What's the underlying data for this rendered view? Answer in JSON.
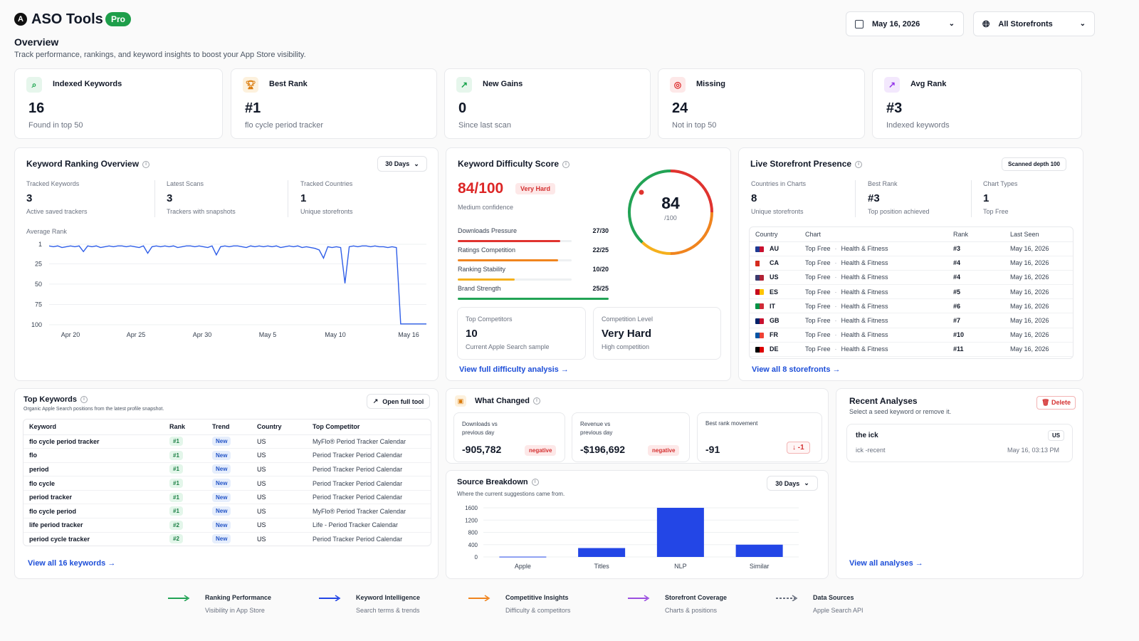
{
  "app": {
    "name": "ASO Tools",
    "badge": "Pro"
  },
  "page": {
    "title": "Overview",
    "subtitle": "Track performance, rankings, and keyword insights to boost your App Store visibility."
  },
  "controls": {
    "date": "May 16, 2026",
    "storefront": "All Storefronts"
  },
  "stats": [
    {
      "label": "Indexed Keywords",
      "value": "16",
      "sub": "Found in top 50",
      "icon": "search-icon",
      "color": "#16a34a"
    },
    {
      "label": "Best Rank",
      "value": "#1",
      "sub": "flo cycle period tracker",
      "icon": "trophy-icon",
      "color": "#d97706"
    },
    {
      "label": "New Gains",
      "value": "0",
      "sub": "Since last scan",
      "icon": "trend-up-icon",
      "color": "#16a34a"
    },
    {
      "label": "Missing",
      "value": "24",
      "sub": "Not in top 50",
      "icon": "target-icon",
      "color": "#dc2626"
    },
    {
      "label": "Avg Rank",
      "value": "#3",
      "sub": "Indexed keywords",
      "icon": "trend-up-icon",
      "color": "#9333ea"
    }
  ],
  "ranking": {
    "title": "Keyword Ranking Overview",
    "range": "30 Days",
    "metrics": [
      {
        "label": "Tracked Keywords",
        "value": "3",
        "sub": "Active saved trackers"
      },
      {
        "label": "Latest Scans",
        "value": "3",
        "sub": "Trackers with snapshots"
      },
      {
        "label": "Tracked Countries",
        "value": "1",
        "sub": "Unique storefronts"
      }
    ],
    "chart_data": {
      "type": "line",
      "ylabel": "Average Rank",
      "yticks": [
        "1",
        "25",
        "50",
        "75",
        "100"
      ],
      "ylim": [
        1,
        100
      ],
      "y_inverted": true,
      "xticks": [
        "Apr 20",
        "Apr 25",
        "Apr 30",
        "May 5",
        "May 10",
        "May 16"
      ],
      "series": [
        {
          "values": [
            3,
            4,
            3,
            5,
            4,
            3,
            4,
            3,
            10,
            3,
            4,
            3,
            5,
            4,
            3,
            4,
            3,
            3,
            4,
            3,
            4,
            5,
            3,
            12,
            4,
            3,
            4,
            3,
            4,
            3,
            5,
            4,
            3,
            3,
            4,
            3,
            4,
            5,
            3,
            14,
            4,
            3,
            4,
            3,
            3,
            4,
            5,
            3,
            4,
            3,
            4,
            3,
            4,
            3,
            5,
            4,
            3,
            4,
            3,
            5,
            4,
            5,
            6,
            8,
            18,
            4,
            5,
            4,
            5,
            49,
            4,
            3,
            4,
            3,
            3,
            4,
            3,
            4,
            4,
            5,
            4,
            5,
            99,
            99,
            99,
            99,
            99,
            99,
            99
          ]
        }
      ],
      "color": "#2f5ee8"
    }
  },
  "difficulty": {
    "title": "Keyword Difficulty Score",
    "score": "84/100",
    "tag": "Very Hard",
    "confidence": "Medium confidence",
    "gauge_value": "84",
    "gauge_max": "/100",
    "gauge_fraction": 0.84,
    "factors": [
      {
        "label": "Downloads Pressure",
        "value": "27/30",
        "fraction": 0.9,
        "color": "#e0332f"
      },
      {
        "label": "Ratings Competition",
        "value": "22/25",
        "fraction": 0.88,
        "color": "#f0841e"
      },
      {
        "label": "Ranking Stability",
        "value": "10/20",
        "fraction": 0.5,
        "color": "#f5b01c"
      },
      {
        "label": "Brand Strength",
        "value": "25/25",
        "fraction": 1.0,
        "color": "#22a355"
      }
    ],
    "competitors": {
      "label": "Top Competitors",
      "value": "10",
      "sub": "Current Apple Search sample"
    },
    "level": {
      "label": "Competition Level",
      "value": "Very Hard",
      "sub": "High competition"
    },
    "link": "View full difficulty analysis"
  },
  "storefront": {
    "title": "Live Storefront Presence",
    "depth": "Scanned depth 100",
    "metrics": [
      {
        "label": "Countries in Charts",
        "value": "8",
        "sub": "Unique storefronts"
      },
      {
        "label": "Best Rank",
        "value": "#3",
        "sub": "Top position achieved"
      },
      {
        "label": "Chart Types",
        "value": "1",
        "sub": "Top Free"
      }
    ],
    "headers": [
      "Country",
      "Chart",
      "Rank",
      "Last Seen"
    ],
    "rows": [
      {
        "code": "AU",
        "chart": "Top Free",
        "cat": "Health & Fitness",
        "rank": "#3",
        "seen": "May 16, 2026"
      },
      {
        "code": "CA",
        "chart": "Top Free",
        "cat": "Health & Fitness",
        "rank": "#4",
        "seen": "May 16, 2026"
      },
      {
        "code": "US",
        "chart": "Top Free",
        "cat": "Health & Fitness",
        "rank": "#4",
        "seen": "May 16, 2026"
      },
      {
        "code": "ES",
        "chart": "Top Free",
        "cat": "Health & Fitness",
        "rank": "#5",
        "seen": "May 16, 2026"
      },
      {
        "code": "IT",
        "chart": "Top Free",
        "cat": "Health & Fitness",
        "rank": "#6",
        "seen": "May 16, 2026"
      },
      {
        "code": "GB",
        "chart": "Top Free",
        "cat": "Health & Fitness",
        "rank": "#7",
        "seen": "May 16, 2026"
      },
      {
        "code": "FR",
        "chart": "Top Free",
        "cat": "Health & Fitness",
        "rank": "#10",
        "seen": "May 16, 2026"
      },
      {
        "code": "DE",
        "chart": "Top Free",
        "cat": "Health & Fitness",
        "rank": "#11",
        "seen": "May 16, 2026"
      }
    ],
    "link": "View all 8 storefronts"
  },
  "top_keywords": {
    "title": "Top Keywords",
    "subtitle": "Organic Apple Search positions from the latest profile snapshot.",
    "open": "Open full tool",
    "headers": [
      "Keyword",
      "Rank",
      "Trend",
      "Country",
      "Top Competitor"
    ],
    "rows": [
      {
        "keyword": "flo cycle period tracker",
        "rank": "#1",
        "trend": "New",
        "country": "US",
        "competitor": "MyFlo® Period Tracker Calendar"
      },
      {
        "keyword": "flo",
        "rank": "#1",
        "trend": "New",
        "country": "US",
        "competitor": "Period Tracker Period Calendar"
      },
      {
        "keyword": "period",
        "rank": "#1",
        "trend": "New",
        "country": "US",
        "competitor": "Period Tracker Period Calendar"
      },
      {
        "keyword": "flo cycle",
        "rank": "#1",
        "trend": "New",
        "country": "US",
        "competitor": "Period Tracker Period Calendar"
      },
      {
        "keyword": "period tracker",
        "rank": "#1",
        "trend": "New",
        "country": "US",
        "competitor": "Period Tracker Period Calendar"
      },
      {
        "keyword": "flo cycle period",
        "rank": "#1",
        "trend": "New",
        "country": "US",
        "competitor": "MyFlo® Period Tracker Calendar"
      },
      {
        "keyword": "life period tracker",
        "rank": "#2",
        "trend": "New",
        "country": "US",
        "competitor": "Life - Period Tracker Calendar"
      },
      {
        "keyword": "period cycle tracker",
        "rank": "#2",
        "trend": "New",
        "country": "US",
        "competitor": "Period Tracker Period Calendar"
      }
    ],
    "link": "View all 16 keywords"
  },
  "changed": {
    "title": "What Changed",
    "items": [
      {
        "label": "Downloads vs previous day",
        "value": "-905,782",
        "tag": "negative"
      },
      {
        "label": "Revenue vs previous day",
        "value": "-$196,692",
        "tag": "negative"
      },
      {
        "label": "Best rank movement",
        "value": "-91",
        "tag": "-1"
      }
    ]
  },
  "source": {
    "title": "Source Breakdown",
    "subtitle": "Where the current suggestions came from.",
    "range": "30 Days",
    "chart_data": {
      "type": "bar",
      "categories": [
        "Apple",
        "Titles",
        "NLP",
        "Similar"
      ],
      "values": [
        10,
        290,
        1600,
        400
      ],
      "yticks": [
        "0",
        "400",
        "800",
        "1200",
        "1600"
      ],
      "ylim": [
        0,
        1600
      ],
      "color": "#2346e6"
    }
  },
  "recent": {
    "title": "Recent Analyses",
    "subtitle": "Select a seed keyword or remove it.",
    "delete": "Delete",
    "item": {
      "title": "the ick",
      "country": "US",
      "sub": "ick -recent",
      "date": "May 16, 03:13 PM"
    },
    "link": "View all analyses"
  },
  "legend": [
    {
      "title": "Ranking Performance",
      "sub": "Visibility in App Store",
      "color": "#22a355",
      "dashed": false
    },
    {
      "title": "Keyword Intelligence",
      "sub": "Search terms & trends",
      "color": "#2346e6",
      "dashed": false
    },
    {
      "title": "Competitive Insights",
      "sub": "Difficulty & competitors",
      "color": "#f0841e",
      "dashed": false
    },
    {
      "title": "Storefront Coverage",
      "sub": "Charts & positions",
      "color": "#9b4fe0",
      "dashed": false
    },
    {
      "title": "Data Sources",
      "sub": "Apple Search API",
      "color": "#6b7280",
      "dashed": true
    }
  ]
}
